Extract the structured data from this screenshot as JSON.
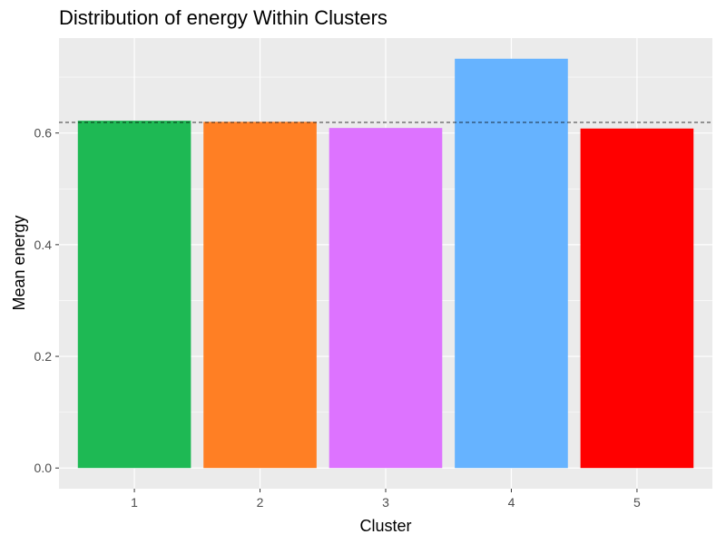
{
  "chart_data": {
    "type": "bar",
    "title": "Distribution of energy Within Clusters",
    "xlabel": "Cluster",
    "ylabel": "Mean energy",
    "categories": [
      "1",
      "2",
      "3",
      "4",
      "5"
    ],
    "values": [
      0.622,
      0.62,
      0.609,
      0.733,
      0.608
    ],
    "colors": [
      "#1EB954",
      "#FF7F24",
      "#DD73FF",
      "#66B3FF",
      "#FF0000"
    ],
    "ylim": [
      -0.037,
      0.77
    ],
    "yticks": [
      0.0,
      0.2,
      0.4,
      0.6
    ],
    "ytick_labels": [
      "0.0",
      "0.2",
      "0.4",
      "0.6"
    ],
    "reference_line": {
      "value": 0.619,
      "style": "dashed",
      "color": "#000000"
    },
    "grid": true,
    "legend": "none",
    "panel_background": "#EBEBEB",
    "grid_color": "#FFFFFF"
  }
}
